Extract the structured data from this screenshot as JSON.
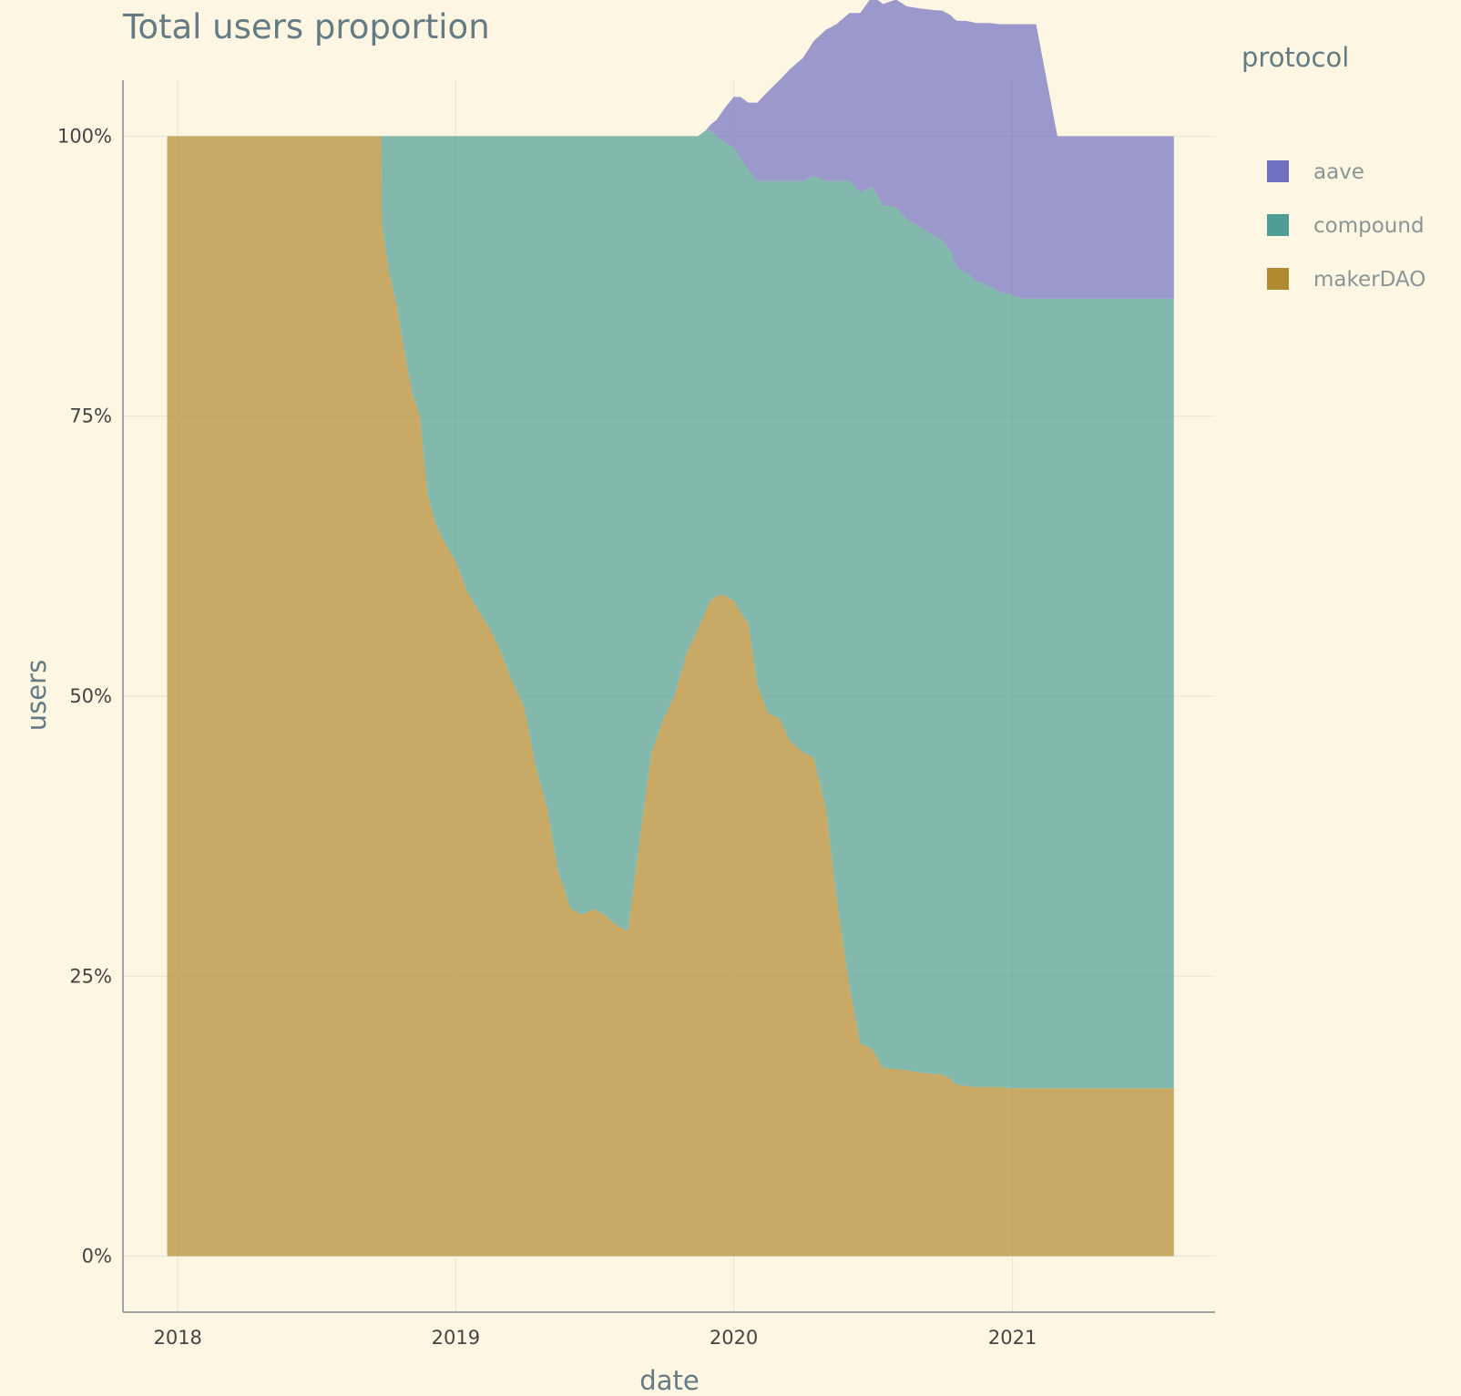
{
  "chart_data": {
    "type": "area",
    "title": "Total users proportion",
    "xlabel": "date",
    "ylabel": "users",
    "x_ticks": [
      {
        "label": "2018",
        "value": "2018-01-01"
      },
      {
        "label": "2019",
        "value": "2019-01-01"
      },
      {
        "label": "2020",
        "value": "2020-01-01"
      },
      {
        "label": "2021",
        "value": "2021-01-01"
      }
    ],
    "y_ticks": [
      "0%",
      "25%",
      "50%",
      "75%",
      "100%"
    ],
    "y_tick_values": [
      0,
      25,
      50,
      75,
      100
    ],
    "xlim": [
      "2017-10-21",
      "2021-09-24"
    ],
    "ylim": [
      -5,
      105
    ],
    "grid": true,
    "legend": {
      "title": "protocol",
      "position": "right",
      "items": [
        {
          "name": "aave",
          "color": "#7070c0"
        },
        {
          "name": "compound",
          "color": "#4e9e95"
        },
        {
          "name": "makerDAO",
          "color": "#b08a30"
        }
      ]
    },
    "x": [
      "2017-12-18",
      "2018-03-01",
      "2018-06-01",
      "2018-09-01",
      "2018-09-25",
      "2018-09-26",
      "2018-10-05",
      "2018-10-15",
      "2018-10-25",
      "2018-11-05",
      "2018-11-15",
      "2018-11-25",
      "2018-12-05",
      "2018-12-15",
      "2019-01-01",
      "2019-01-15",
      "2019-02-01",
      "2019-02-15",
      "2019-03-01",
      "2019-03-15",
      "2019-04-01",
      "2019-04-15",
      "2019-05-01",
      "2019-05-15",
      "2019-06-01",
      "2019-06-15",
      "2019-07-01",
      "2019-07-15",
      "2019-08-01",
      "2019-08-15",
      "2019-09-01",
      "2019-09-15",
      "2019-10-01",
      "2019-10-15",
      "2019-11-01",
      "2019-11-15",
      "2019-11-25",
      "2019-12-01",
      "2019-12-10",
      "2019-12-20",
      "2020-01-01",
      "2020-01-10",
      "2020-01-20",
      "2020-02-01",
      "2020-02-15",
      "2020-03-01",
      "2020-03-15",
      "2020-04-01",
      "2020-04-15",
      "2020-05-01",
      "2020-05-15",
      "2020-06-01",
      "2020-06-15",
      "2020-07-01",
      "2020-07-15",
      "2020-08-01",
      "2020-08-15",
      "2020-09-01",
      "2020-09-15",
      "2020-10-01",
      "2020-10-12",
      "2020-10-16",
      "2020-10-20",
      "2020-11-01",
      "2020-11-15",
      "2020-12-01",
      "2020-12-15",
      "2021-01-01",
      "2021-01-15",
      "2021-02-01",
      "2021-03-01",
      "2021-04-01",
      "2021-05-01",
      "2021-06-01",
      "2021-07-01",
      "2021-08-01"
    ],
    "series": [
      {
        "name": "makerDAO",
        "values": [
          100,
          100,
          100,
          100,
          100,
          92,
          88,
          85,
          81,
          77,
          75,
          68,
          65.5,
          64,
          62,
          59.5,
          57.5,
          56,
          54,
          51.5,
          49,
          44,
          40,
          34.5,
          31,
          30.5,
          31,
          30.5,
          29.5,
          29,
          38,
          45,
          48,
          50,
          54,
          56,
          57.5,
          58.5,
          59,
          59,
          58.5,
          57.5,
          56.5,
          51,
          48.5,
          48,
          46,
          45,
          44.5,
          40,
          32,
          24,
          19,
          18.5,
          16.8,
          16.7,
          16.6,
          16.4,
          16.3,
          16.2,
          15.8,
          15.5,
          15.3,
          15.2,
          15.1,
          15.1,
          15.1,
          15.0,
          15.0,
          15.0,
          15.0,
          15.0,
          15.0,
          15.0,
          15.0,
          15.0
        ]
      },
      {
        "name": "compound",
        "values": [
          0,
          0,
          0,
          0,
          0,
          8,
          12,
          15,
          19,
          23,
          25,
          32,
          34.5,
          36,
          38,
          40.5,
          42.5,
          44,
          46,
          48.5,
          51,
          56,
          60,
          65.5,
          69,
          69.5,
          69,
          69.5,
          70.5,
          71,
          62,
          55,
          52,
          50,
          46,
          44,
          43,
          42,
          41,
          40.5,
          40.5,
          40.5,
          40.5,
          45,
          47.5,
          48,
          50,
          51,
          52,
          56,
          64,
          72,
          76,
          77,
          77,
          77,
          76,
          75.5,
          75,
          74.5,
          74,
          73.5,
          73,
          72.6,
          72.0,
          71.5,
          71.0,
          70.8,
          70.5,
          70.5,
          70.5,
          70.5,
          70.5,
          70.5,
          70.5,
          70.5
        ]
      },
      {
        "name": "aave",
        "values": [
          0,
          0,
          0,
          0,
          0,
          0,
          0,
          0,
          0,
          0,
          0,
          0,
          0,
          0,
          0,
          0,
          0,
          0,
          0,
          0,
          0,
          0,
          0,
          0,
          0,
          0,
          0,
          0,
          0,
          0,
          0,
          0,
          0,
          0,
          0,
          0,
          0,
          0.5,
          1.5,
          3,
          4.5,
          5.5,
          6,
          7,
          8,
          9,
          10,
          11,
          12,
          13.5,
          14,
          15,
          16,
          17,
          18,
          18.5,
          19,
          19.5,
          20,
          20.5,
          21,
          21.5,
          22,
          22.5,
          23.0,
          23.5,
          23.9,
          24.2,
          24.5,
          24.5,
          14.5,
          14.5,
          14.5,
          14.5,
          14.5,
          14.5
        ]
      }
    ]
  }
}
